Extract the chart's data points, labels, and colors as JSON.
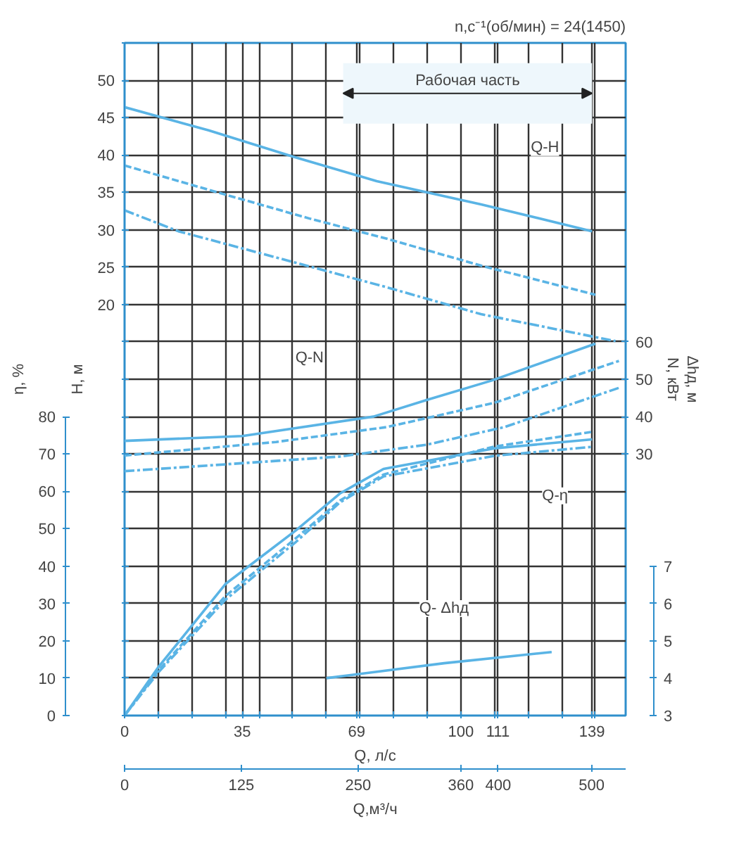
{
  "chart_data": [
    {
      "type": "line",
      "subtitle": "n,c⁻¹(об/мин) = 24(1450)",
      "xlabel": "Q, л/с",
      "x2label": "Q,м³/ч",
      "ylabel": "H, м",
      "y2label": "η, %",
      "y3label": "N, кВт",
      "xlim": [
        0,
        149
      ],
      "xticks": [
        0,
        {
          "value": 10,
          "label": null
        },
        {
          "value": 20,
          "label": null
        },
        {
          "value": 30,
          "label": null
        },
        35,
        {
          "value": 40,
          "label": null
        },
        {
          "value": 50,
          "label": null
        },
        {
          "value": 60,
          "label": null
        },
        69,
        {
          "value": 70,
          "label": null
        },
        {
          "value": 80,
          "label": null
        },
        {
          "value": 90,
          "label": null
        },
        100,
        {
          "value": 110,
          "label": null
        },
        111,
        {
          "value": 120,
          "label": null
        },
        {
          "value": 130,
          "label": null
        },
        139,
        {
          "value": 140,
          "label": null
        }
      ],
      "x2lim": [
        0,
        536.4
      ],
      "x2ticks": [
        0,
        125,
        250,
        360,
        400,
        500
      ],
      "ylim": [
        -35,
        55
      ],
      "yticks": [
        {
          "value": -35,
          "label": null
        },
        {
          "value": -30,
          "label": null
        },
        {
          "value": -25,
          "label": null
        },
        {
          "value": -20,
          "label": null
        },
        {
          "value": -15,
          "label": null
        },
        {
          "value": -10,
          "label": null
        },
        {
          "value": -5,
          "label": null
        },
        {
          "value": 0,
          "label": null
        },
        {
          "value": 5,
          "label": null
        },
        {
          "value": 10,
          "label": null
        },
        {
          "value": 15,
          "label": null
        },
        20,
        25,
        30,
        35,
        40,
        45,
        50,
        {
          "value": 55,
          "label": null
        }
      ],
      "y2lim": [
        0,
        180
      ],
      "y2ticks": [
        0,
        10,
        20,
        30,
        40,
        50,
        60,
        70,
        80
      ],
      "y3lim": [
        -40,
        140
      ],
      "y3ticks": [
        30,
        40,
        50,
        60
      ],
      "grid": true,
      "series": [
        {
          "line_style": "solid",
          "color": "#5ab4e5",
          "x": [
            0,
            25,
            50,
            75,
            106,
            139
          ],
          "values": [
            46.4,
            43.3,
            39.8,
            36.5,
            33.4,
            29.8
          ]
        },
        {
          "line_style": "dashed",
          "color": "#5ab4e5",
          "x": [
            0,
            30,
            55,
            78,
            106,
            140
          ],
          "values": [
            38.6,
            34.7,
            31.5,
            28.8,
            25.2,
            21.3
          ]
        },
        {
          "line_style": "dashdot",
          "color": "#5ab4e5",
          "x": [
            0,
            16,
            45,
            78,
            106,
            146
          ],
          "values": [
            32.6,
            29.8,
            26.3,
            22.3,
            18.7,
            15.1
          ]
        },
        {
          "axis": "y3",
          "line_style": "solid",
          "color": "#5ab4e5",
          "x": [
            0,
            35,
            74,
            90,
            109,
            140
          ],
          "values": [
            33.5,
            34.8,
            40,
            44.5,
            49.6,
            59.5
          ]
        },
        {
          "axis": "y3",
          "line_style": "dashed",
          "color": "#5ab4e5",
          "x": [
            0,
            45,
            78,
            110,
            147
          ],
          "values": [
            29.6,
            33.2,
            37.2,
            43.7,
            54.9
          ]
        },
        {
          "axis": "y3",
          "line_style": "dashdot",
          "color": "#5ab4e5",
          "x": [
            0,
            64,
            90,
            113,
            147
          ],
          "values": [
            25.4,
            29.3,
            32.5,
            37.2,
            47.7
          ]
        },
        {
          "axis": "y2",
          "line_style": "solid",
          "color": "#5ab4e5",
          "x": [
            0,
            10,
            30,
            51,
            64,
            77,
            110,
            139
          ],
          "values": [
            0,
            12.9,
            35.2,
            49.6,
            59.4,
            66,
            71.5,
            73.9
          ]
        },
        {
          "axis": "y2",
          "line_style": "dashed",
          "color": "#5ab4e5",
          "x": [
            0,
            10,
            30,
            51,
            64,
            77,
            110,
            139
          ],
          "values": [
            0,
            12,
            32,
            47.5,
            57.5,
            64.5,
            72,
            75.9
          ]
        },
        {
          "axis": "y2",
          "line_style": "dashdot",
          "color": "#5ab4e5",
          "x": [
            0,
            10,
            30,
            51,
            64,
            77,
            110,
            139
          ],
          "values": [
            0,
            11.5,
            31,
            46.5,
            57,
            64,
            69.5,
            71.9
          ]
        }
      ],
      "bands": [
        {
          "axis": "x",
          "from": 65,
          "to": 139,
          "label": "Рабочая часть",
          "color": "#eef7fc"
        }
      ],
      "annotations": [
        {
          "text": "Q-H",
          "x": 125,
          "y": 41
        },
        {
          "text": "Q-N",
          "x": 55,
          "y": 12.8
        },
        {
          "text": "Q-η",
          "x": 128,
          "y": -5.6
        },
        {
          "text": "Q- Δhд",
          "x": 95,
          "y": -20.7
        }
      ]
    },
    {
      "type": "line",
      "ylabel": "Δhд, м",
      "xlim": [
        0,
        149
      ],
      "ylim": [
        3,
        21
      ],
      "yticks": [
        3,
        4,
        5,
        6,
        7
      ],
      "tick_labels": "y",
      "series": [
        {
          "line_style": "solid",
          "color": "#5ab4e5",
          "x": [
            60,
            95,
            127
          ],
          "values": [
            4.0,
            4.4,
            4.7
          ]
        }
      ]
    }
  ]
}
